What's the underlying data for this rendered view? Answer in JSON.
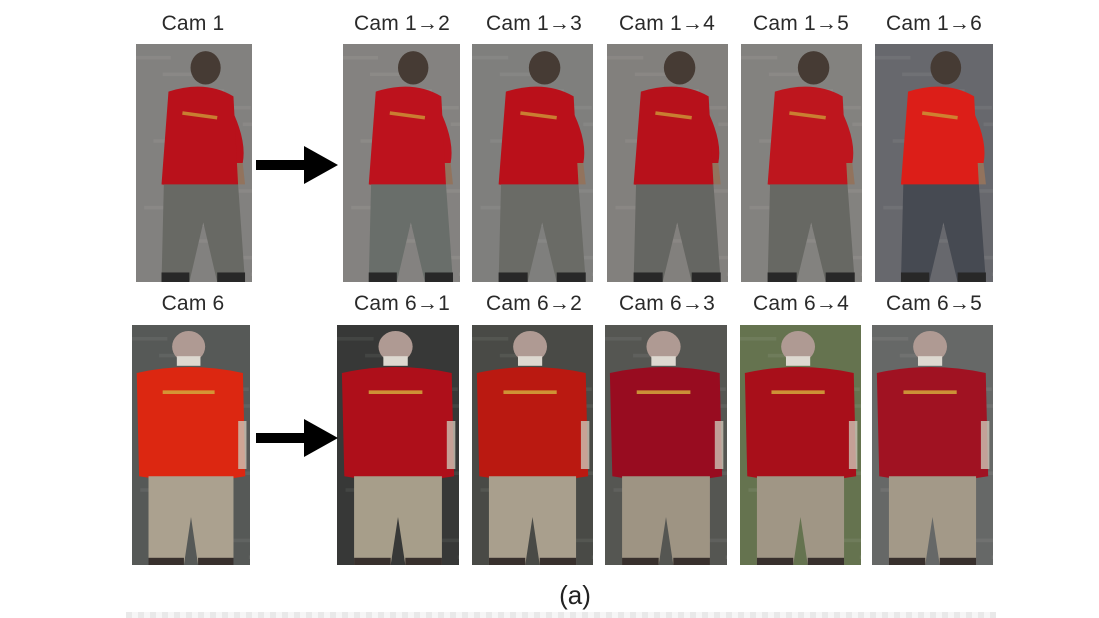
{
  "caption": "(a)",
  "rows": [
    {
      "source": {
        "label": "Cam 1"
      },
      "outputs": [
        {
          "label": "Cam 1→2"
        },
        {
          "label": "Cam 1→3"
        },
        {
          "label": "Cam 1→4"
        },
        {
          "label": "Cam 1→5"
        },
        {
          "label": "Cam 1→6"
        }
      ]
    },
    {
      "source": {
        "label": "Cam 6"
      },
      "outputs": [
        {
          "label": "Cam 6→1"
        },
        {
          "label": "Cam 6→2"
        },
        {
          "label": "Cam 6→3"
        },
        {
          "label": "Cam 6→4"
        },
        {
          "label": "Cam 6→5"
        }
      ]
    }
  ],
  "colors": {
    "row1_shirt": [
      "#c3121d",
      "#c8141f",
      "#c5111c",
      "#c1121d",
      "#c91820",
      "#e8201a"
    ],
    "row1_pants": [
      "#6e6f6a",
      "#6f7470",
      "#70716c",
      "#6b6c68",
      "#6d6e69",
      "#4a4e57"
    ],
    "row1_bg": [
      "#8a8886",
      "#8c8a87",
      "#868684",
      "#8a8784",
      "#8b8986",
      "#6d6e73"
    ],
    "row2_shirt": [
      "#e82a12",
      "#b8101c",
      "#c41b12",
      "#a10d22",
      "#b2101c",
      "#a91424"
    ],
    "row2_pants": [
      "#b5aa97",
      "#b0a792",
      "#b3a895",
      "#a79c8b",
      "#a99f8d",
      "#aca290"
    ],
    "row2_bg": [
      "#5b5e5c",
      "#3a3c3a",
      "#4d4f4a",
      "#5a5b57",
      "#6b7a54",
      "#6c6e6d"
    ]
  }
}
